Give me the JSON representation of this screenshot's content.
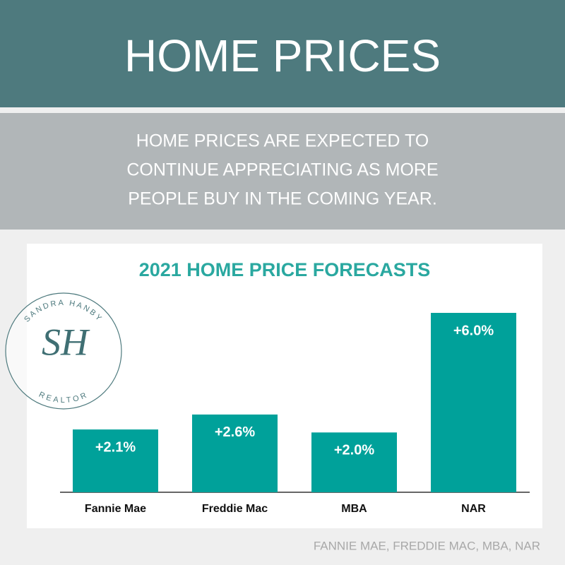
{
  "header": {
    "title": "HOME PRICES",
    "subtitle_lines": [
      "HOME PRICES ARE EXPECTED TO",
      "CONTINUE APPRECIATING AS MORE",
      "PEOPLE BUY IN THE COMING YEAR."
    ]
  },
  "logo": {
    "top_text": "SANDRA HANBY",
    "monogram": "SH",
    "bottom_text": "REALTOR"
  },
  "chart_data": {
    "type": "bar",
    "title": "2021 HOME PRICE FORECASTS",
    "categories": [
      "Fannie Mae",
      "Freddie Mac",
      "MBA",
      "NAR"
    ],
    "values": [
      2.1,
      2.6,
      2.0,
      6.0
    ],
    "value_labels": [
      "+2.1%",
      "+2.6%",
      "+2.0%",
      "+6.0%"
    ],
    "color": "#00a19a"
  },
  "source": "FANNIE MAE, FREDDIE MAC, MBA, NAR"
}
